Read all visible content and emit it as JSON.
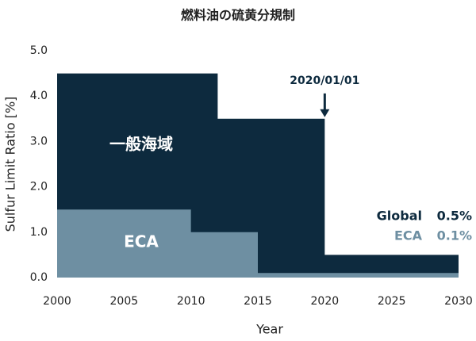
{
  "chart_data": {
    "type": "step-area",
    "title": "燃料油の硫黄分規制",
    "x_label": "Year",
    "y_label": "Sulfur Limit Ratio [%]",
    "xlim": [
      2000,
      2030
    ],
    "xticks": [
      2000,
      2005,
      2010,
      2015,
      2020,
      2025,
      2030
    ],
    "ylim": [
      0,
      5
    ],
    "yticks": [
      {
        "value": 0,
        "label": "0.0"
      },
      {
        "value": 1,
        "label": "1.0"
      },
      {
        "value": 2,
        "label": "2.0"
      },
      {
        "value": 3,
        "label": "3.0"
      },
      {
        "value": 4,
        "label": "4.0"
      },
      {
        "value": 5,
        "label": "5.0"
      }
    ],
    "grid": false,
    "series": [
      {
        "name": "Global",
        "area_label": "一般海域",
        "color": "#0d2a3e",
        "x": [
          2000,
          2012,
          2020,
          2030
        ],
        "values": [
          4.5,
          3.5,
          0.5,
          0.5
        ],
        "value_labels": [
          null,
          null,
          null,
          "0.5%"
        ]
      },
      {
        "name": "ECA",
        "area_label": "ECA",
        "color": "#6e8fa2",
        "x": [
          2000,
          2010,
          2015,
          2030
        ],
        "values": [
          1.5,
          1.0,
          0.1,
          0.1
        ],
        "value_labels": [
          null,
          null,
          null,
          "0.1%"
        ]
      }
    ],
    "annotation": {
      "text": "2020/01/01",
      "x": 2020
    }
  }
}
